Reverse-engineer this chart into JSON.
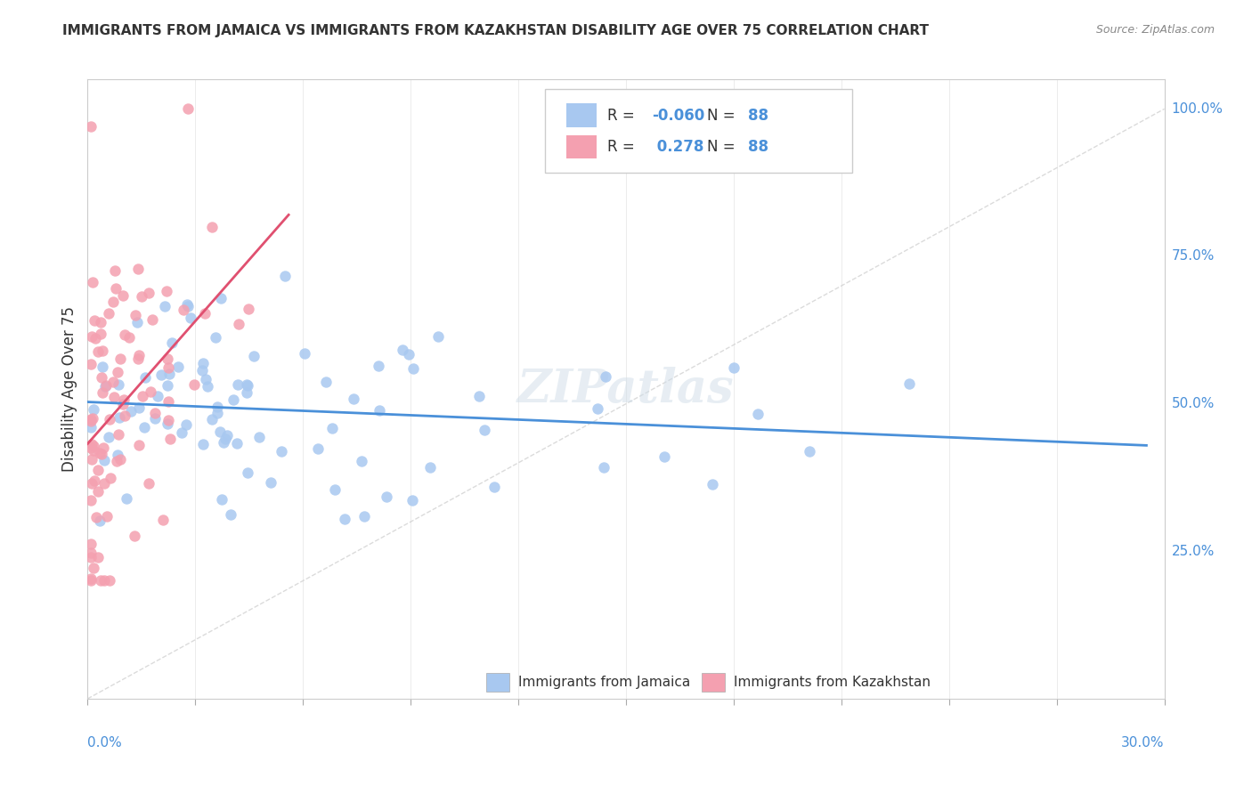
{
  "title": "IMMIGRANTS FROM JAMAICA VS IMMIGRANTS FROM KAZAKHSTAN DISABILITY AGE OVER 75 CORRELATION CHART",
  "source": "Source: ZipAtlas.com",
  "ylabel": "Disability Age Over 75",
  "legend_jamaica": "Immigrants from Jamaica",
  "legend_kazakhstan": "Immigrants from Kazakhstan",
  "R_jamaica": "-0.060",
  "R_kazakhstan": "0.278",
  "N_jamaica": "88",
  "N_kazakhstan": "88",
  "color_jamaica": "#a8c8f0",
  "color_kazakhstan": "#f4a0b0",
  "color_trend_jamaica": "#4a90d9",
  "color_trend_kazakhstan": "#e05070",
  "watermark": "ZIPatlas",
  "xmin": 0.0,
  "xmax": 0.3,
  "ymin": 0.0,
  "ymax": 1.05
}
